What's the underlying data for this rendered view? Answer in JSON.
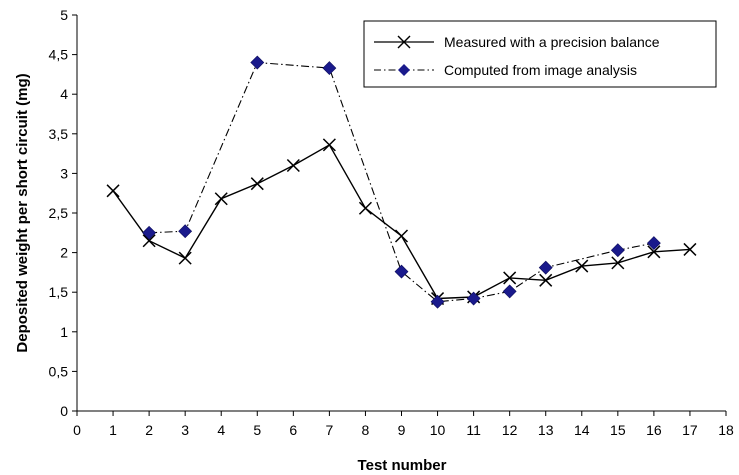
{
  "chart_data": {
    "type": "line",
    "title": "",
    "xlabel": "Test number",
    "ylabel": "Deposited weight per short circuit (mg)",
    "xlim": [
      0,
      18
    ],
    "ylim": [
      0,
      5
    ],
    "x_ticks": [
      "0",
      "1",
      "2",
      "3",
      "4",
      "5",
      "6",
      "7",
      "8",
      "9",
      "10",
      "11",
      "12",
      "13",
      "14",
      "15",
      "16",
      "17",
      "18"
    ],
    "y_ticks": [
      "0",
      "0,5",
      "1",
      "1,5",
      "2",
      "2,5",
      "3",
      "3,5",
      "4",
      "4,5",
      "5"
    ],
    "grid": false,
    "legend_position": "top-right",
    "series": [
      {
        "name": "Measured with a precision balance",
        "marker": "x",
        "line_style": "solid",
        "color": "#000000",
        "x": [
          1,
          2,
          3,
          4,
          5,
          6,
          7,
          8,
          9,
          10,
          11,
          12,
          13,
          14,
          15,
          16,
          17
        ],
        "y": [
          2.78,
          2.15,
          1.93,
          2.68,
          2.87,
          3.1,
          3.36,
          2.56,
          2.21,
          1.42,
          1.44,
          1.68,
          1.65,
          1.83,
          1.87,
          2.01,
          2.04
        ]
      },
      {
        "name": "Computed from image analysis",
        "marker": "diamond",
        "line_style": "dash-dot",
        "color": "#1a1a8c",
        "x": [
          2,
          3,
          5,
          7,
          9,
          10,
          11,
          12,
          13,
          15,
          16
        ],
        "y": [
          2.25,
          2.27,
          4.4,
          4.33,
          1.76,
          1.38,
          1.42,
          1.51,
          1.81,
          2.03,
          2.12
        ]
      }
    ]
  }
}
